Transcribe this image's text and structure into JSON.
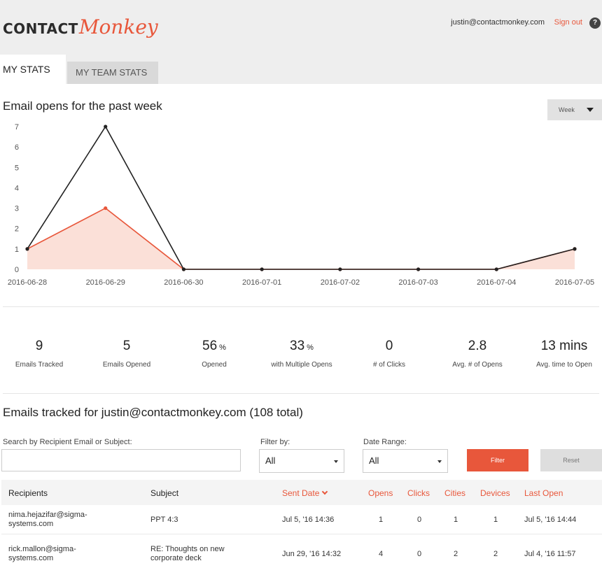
{
  "header": {
    "logo_contact": "CONTACT",
    "logo_monkey": "Monkey",
    "user_email": "justin@contactmonkey.com",
    "sign_out": "Sign out",
    "help": "?"
  },
  "tabs": [
    {
      "label": "MY STATS",
      "active": true
    },
    {
      "label": "MY TEAM STATS",
      "active": false
    }
  ],
  "chart_section": {
    "title": "Email opens for the past week",
    "range_select": "Week"
  },
  "chart_data": {
    "type": "line",
    "x": [
      "2016-06-28",
      "2016-06-29",
      "2016-06-30",
      "2016-07-01",
      "2016-07-02",
      "2016-07-03",
      "2016-07-04",
      "2016-07-05"
    ],
    "ylim": [
      0,
      7
    ],
    "yticks": [
      0,
      1,
      2,
      3,
      4,
      5,
      6,
      7
    ],
    "series": [
      {
        "values": [
          1,
          7,
          0,
          0,
          0,
          0,
          0,
          1
        ],
        "color": "#222222",
        "fill": false
      },
      {
        "values": [
          1,
          3,
          0,
          0,
          0,
          0,
          0,
          1
        ],
        "color": "#e8573b",
        "fill": true,
        "fill_color": "#fbe0d8"
      }
    ],
    "grid": false
  },
  "stats": [
    {
      "value": "9",
      "unit": "",
      "label": "Emails Tracked"
    },
    {
      "value": "5",
      "unit": "",
      "label": "Emails Opened"
    },
    {
      "value": "56",
      "unit": "%",
      "label": "Opened"
    },
    {
      "value": "33",
      "unit": "%",
      "label": "with Multiple Opens"
    },
    {
      "value": "0",
      "unit": "",
      "label": "# of Clicks"
    },
    {
      "value": "2.8",
      "unit": "",
      "label": "Avg. # of Opens"
    },
    {
      "value": "13 mins",
      "unit": "",
      "label": "Avg. time to Open"
    }
  ],
  "tracked": {
    "title": "Emails tracked for justin@contactmonkey.com (108 total)",
    "search_label": "Search by Recipient Email or Subject:",
    "search_value": "",
    "filter_label": "Filter by:",
    "filter_value": "All",
    "date_label": "Date Range:",
    "date_value": "All",
    "filter_button": "Filter",
    "reset_button": "Reset"
  },
  "table": {
    "columns": [
      "Recipients",
      "Subject",
      "Sent Date",
      "Opens",
      "Clicks",
      "Cities",
      "Devices",
      "Last Open"
    ],
    "rows": [
      {
        "recipient_1": "nima.hejazifar@sigma-",
        "recipient_2": "systems.com",
        "subject_1": "PPT 4:3",
        "subject_2": "",
        "sent": "Jul 5, '16 14:36",
        "opens": "1",
        "clicks": "0",
        "cities": "1",
        "devices": "1",
        "last_open": "Jul 5, '16 14:44"
      },
      {
        "recipient_1": "rick.mallon@sigma-",
        "recipient_2": "systems.com",
        "subject_1": "RE: Thoughts on new",
        "subject_2": "corporate deck",
        "sent": "Jun 29, '16 14:32",
        "opens": "4",
        "clicks": "0",
        "cities": "2",
        "devices": "2",
        "last_open": "Jul 4, '16 11:57"
      }
    ]
  },
  "colors": {
    "accent": "#e8573b",
    "header_bg": "#eeeeee"
  }
}
